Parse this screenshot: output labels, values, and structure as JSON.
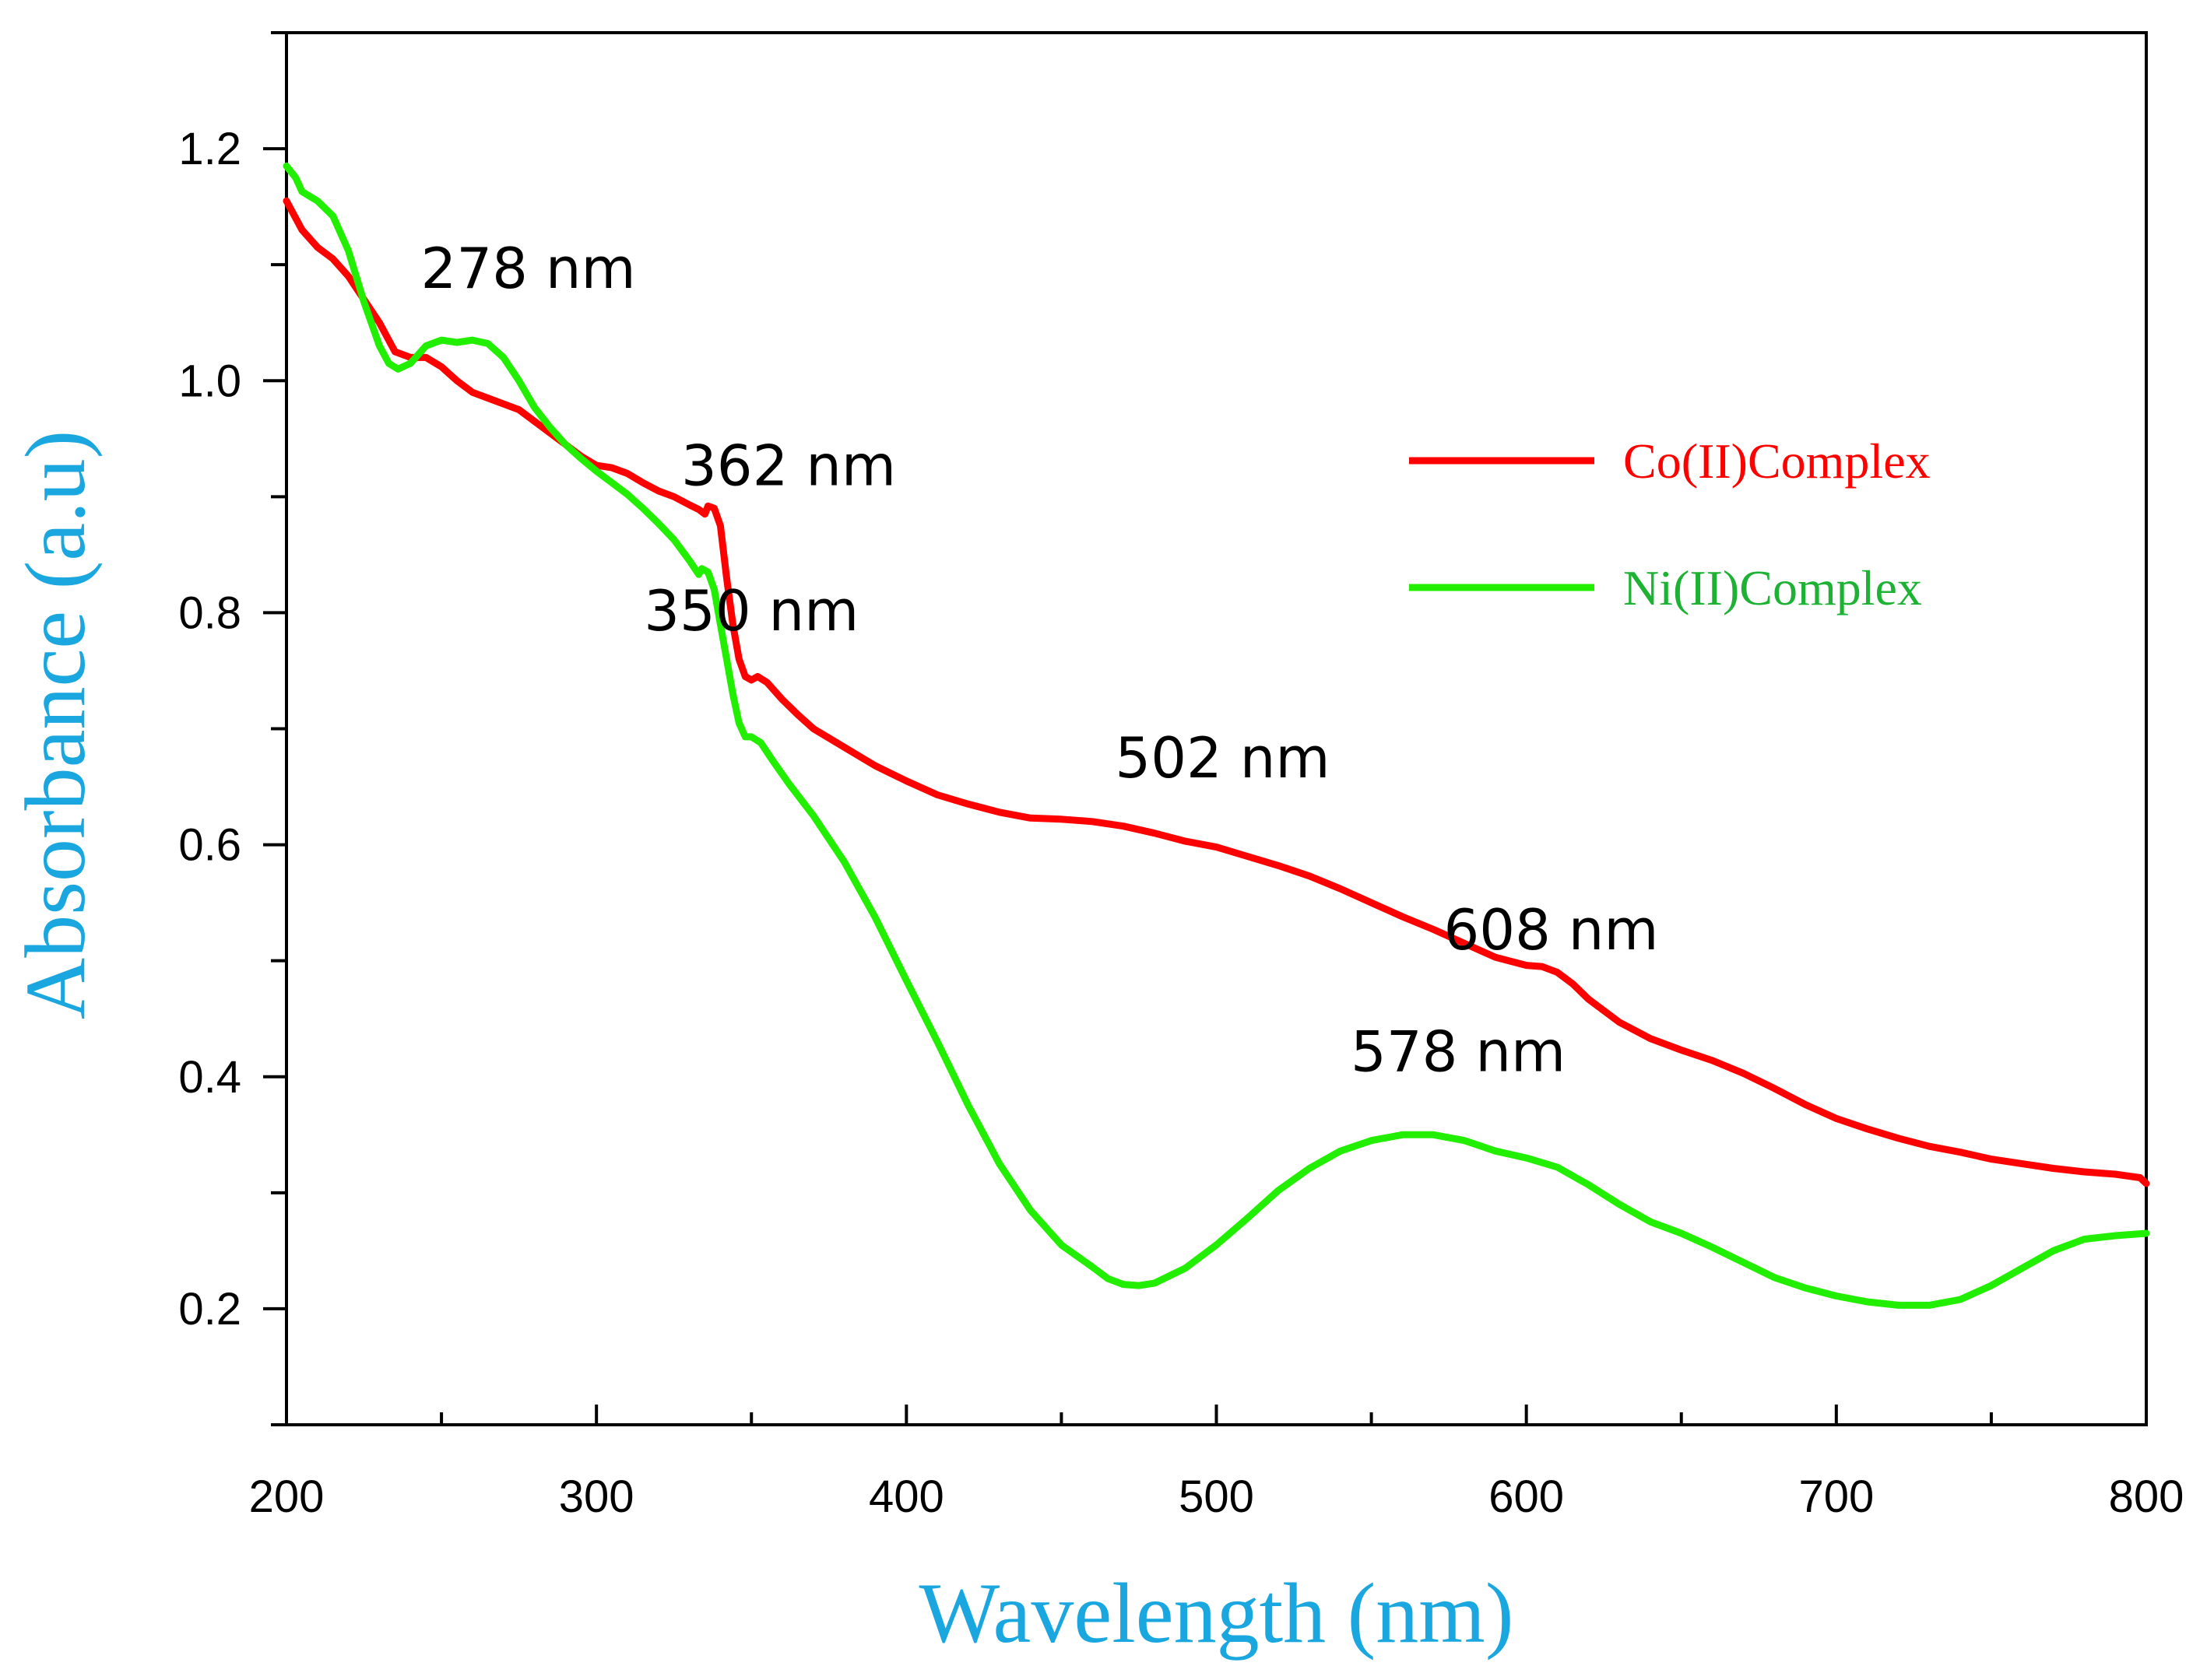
{
  "chart_data": {
    "type": "line",
    "xlabel": "Wavelength (nm)",
    "ylabel": "Absorbance (a.u)",
    "xlim": [
      200,
      800
    ],
    "ylim": [
      0.1,
      1.3
    ],
    "x_ticks": [
      200,
      300,
      400,
      500,
      600,
      700,
      800
    ],
    "x_tick_labels": [
      "200",
      "300",
      "400",
      "500",
      "600",
      "700",
      "800"
    ],
    "y_ticks": [
      0.2,
      0.4,
      0.6,
      0.8,
      1.0,
      1.2
    ],
    "y_tick_labels": [
      "0.2",
      "0.4",
      "0.6",
      "0.8",
      "1.0",
      "1.2"
    ],
    "grid": false,
    "legend_position": "right",
    "axis_title_color": "#1AA7E0",
    "series": [
      {
        "name": "Co(II)Complex",
        "color": "#FF0000",
        "points": [
          [
            200,
            1.155
          ],
          [
            205,
            1.13
          ],
          [
            210,
            1.115
          ],
          [
            215,
            1.105
          ],
          [
            220,
            1.09
          ],
          [
            225,
            1.07
          ],
          [
            230,
            1.05
          ],
          [
            235,
            1.025
          ],
          [
            240,
            1.02
          ],
          [
            245,
            1.02
          ],
          [
            250,
            1.012
          ],
          [
            255,
            1.0
          ],
          [
            260,
            0.99
          ],
          [
            265,
            0.985
          ],
          [
            270,
            0.98
          ],
          [
            275,
            0.975
          ],
          [
            280,
            0.965
          ],
          [
            285,
            0.955
          ],
          [
            290,
            0.945
          ],
          [
            295,
            0.935
          ],
          [
            300,
            0.927
          ],
          [
            305,
            0.925
          ],
          [
            310,
            0.92
          ],
          [
            315,
            0.912
          ],
          [
            320,
            0.905
          ],
          [
            325,
            0.9
          ],
          [
            330,
            0.893
          ],
          [
            333,
            0.889
          ],
          [
            335,
            0.885
          ],
          [
            336,
            0.892
          ],
          [
            338,
            0.89
          ],
          [
            340,
            0.875
          ],
          [
            342,
            0.83
          ],
          [
            344,
            0.79
          ],
          [
            346,
            0.76
          ],
          [
            348,
            0.745
          ],
          [
            350,
            0.742
          ],
          [
            352,
            0.745
          ],
          [
            355,
            0.74
          ],
          [
            360,
            0.725
          ],
          [
            365,
            0.712
          ],
          [
            370,
            0.7
          ],
          [
            380,
            0.684
          ],
          [
            390,
            0.668
          ],
          [
            400,
            0.655
          ],
          [
            410,
            0.643
          ],
          [
            420,
            0.635
          ],
          [
            430,
            0.628
          ],
          [
            440,
            0.623
          ],
          [
            450,
            0.622
          ],
          [
            460,
            0.62
          ],
          [
            470,
            0.616
          ],
          [
            480,
            0.61
          ],
          [
            490,
            0.603
          ],
          [
            500,
            0.598
          ],
          [
            510,
            0.59
          ],
          [
            520,
            0.582
          ],
          [
            530,
            0.573
          ],
          [
            540,
            0.562
          ],
          [
            550,
            0.55
          ],
          [
            560,
            0.538
          ],
          [
            570,
            0.527
          ],
          [
            580,
            0.515
          ],
          [
            590,
            0.503
          ],
          [
            600,
            0.496
          ],
          [
            605,
            0.495
          ],
          [
            610,
            0.49
          ],
          [
            615,
            0.48
          ],
          [
            620,
            0.467
          ],
          [
            630,
            0.447
          ],
          [
            640,
            0.433
          ],
          [
            650,
            0.423
          ],
          [
            660,
            0.414
          ],
          [
            670,
            0.403
          ],
          [
            680,
            0.39
          ],
          [
            690,
            0.376
          ],
          [
            700,
            0.364
          ],
          [
            710,
            0.355
          ],
          [
            720,
            0.347
          ],
          [
            730,
            0.34
          ],
          [
            740,
            0.335
          ],
          [
            750,
            0.329
          ],
          [
            760,
            0.325
          ],
          [
            770,
            0.321
          ],
          [
            780,
            0.318
          ],
          [
            790,
            0.316
          ],
          [
            798,
            0.313
          ],
          [
            800,
            0.308
          ]
        ]
      },
      {
        "name": "Ni(II)Complex",
        "color": "#22EE00",
        "points": [
          [
            200,
            1.185
          ],
          [
            203,
            1.175
          ],
          [
            205,
            1.163
          ],
          [
            210,
            1.155
          ],
          [
            215,
            1.142
          ],
          [
            220,
            1.112
          ],
          [
            225,
            1.068
          ],
          [
            230,
            1.03
          ],
          [
            233,
            1.015
          ],
          [
            236,
            1.01
          ],
          [
            240,
            1.015
          ],
          [
            245,
            1.03
          ],
          [
            250,
            1.035
          ],
          [
            255,
            1.033
          ],
          [
            260,
            1.035
          ],
          [
            265,
            1.032
          ],
          [
            270,
            1.02
          ],
          [
            275,
            1.0
          ],
          [
            280,
            0.977
          ],
          [
            285,
            0.96
          ],
          [
            290,
            0.945
          ],
          [
            295,
            0.933
          ],
          [
            300,
            0.922
          ],
          [
            305,
            0.912
          ],
          [
            310,
            0.902
          ],
          [
            315,
            0.89
          ],
          [
            320,
            0.877
          ],
          [
            325,
            0.863
          ],
          [
            330,
            0.845
          ],
          [
            333,
            0.833
          ],
          [
            334,
            0.838
          ],
          [
            336,
            0.835
          ],
          [
            338,
            0.82
          ],
          [
            340,
            0.79
          ],
          [
            342,
            0.76
          ],
          [
            344,
            0.73
          ],
          [
            346,
            0.705
          ],
          [
            348,
            0.693
          ],
          [
            350,
            0.693
          ],
          [
            353,
            0.688
          ],
          [
            357,
            0.672
          ],
          [
            362,
            0.653
          ],
          [
            370,
            0.625
          ],
          [
            380,
            0.585
          ],
          [
            390,
            0.537
          ],
          [
            400,
            0.483
          ],
          [
            410,
            0.43
          ],
          [
            420,
            0.375
          ],
          [
            430,
            0.325
          ],
          [
            440,
            0.285
          ],
          [
            450,
            0.255
          ],
          [
            460,
            0.236
          ],
          [
            465,
            0.226
          ],
          [
            470,
            0.221
          ],
          [
            475,
            0.22
          ],
          [
            480,
            0.222
          ],
          [
            490,
            0.235
          ],
          [
            500,
            0.255
          ],
          [
            510,
            0.278
          ],
          [
            520,
            0.302
          ],
          [
            530,
            0.321
          ],
          [
            540,
            0.336
          ],
          [
            550,
            0.345
          ],
          [
            560,
            0.35
          ],
          [
            570,
            0.35
          ],
          [
            580,
            0.345
          ],
          [
            590,
            0.336
          ],
          [
            600,
            0.33
          ],
          [
            610,
            0.322
          ],
          [
            620,
            0.307
          ],
          [
            630,
            0.29
          ],
          [
            640,
            0.275
          ],
          [
            650,
            0.265
          ],
          [
            660,
            0.253
          ],
          [
            670,
            0.24
          ],
          [
            680,
            0.227
          ],
          [
            690,
            0.218
          ],
          [
            700,
            0.211
          ],
          [
            710,
            0.206
          ],
          [
            720,
            0.203
          ],
          [
            730,
            0.203
          ],
          [
            740,
            0.208
          ],
          [
            750,
            0.22
          ],
          [
            760,
            0.235
          ],
          [
            770,
            0.25
          ],
          [
            780,
            0.26
          ],
          [
            790,
            0.263
          ],
          [
            800,
            0.265
          ]
        ]
      }
    ],
    "annotations": [
      {
        "text": "278 nm",
        "x": 278,
        "y": 1.08
      },
      {
        "text": "362 nm",
        "x": 362,
        "y": 0.91
      },
      {
        "text": "350 nm",
        "x": 350,
        "y": 0.785
      },
      {
        "text": "502 nm",
        "x": 502,
        "y": 0.658
      },
      {
        "text": "608 nm",
        "x": 608,
        "y": 0.51
      },
      {
        "text": "578 nm",
        "x": 578,
        "y": 0.405
      }
    ]
  }
}
